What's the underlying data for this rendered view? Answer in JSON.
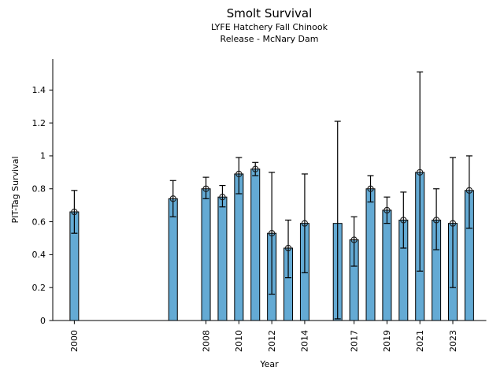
{
  "chart_data": {
    "type": "bar",
    "title": "Smolt Survival",
    "subtitle": [
      "LYFE Hatchery Fall Chinook",
      "Release - McNary Dam"
    ],
    "xlabel": "Year",
    "ylabel": "PIT-Tag Survival",
    "xlim": [
      1998.69,
      2025.01
    ],
    "ylim": [
      0,
      1.588
    ],
    "grid": false,
    "legend": "none",
    "yticks": [
      0,
      0.2,
      0.4,
      0.6,
      0.8,
      1,
      1.2,
      1.4
    ],
    "ytick_labels": [
      "0",
      "0.2",
      "0.4",
      "0.6",
      "0.8",
      "1",
      "1.2",
      "1.4"
    ],
    "xticks": [
      2000,
      2008,
      2010,
      2012,
      2014,
      2017,
      2019,
      2021,
      2023
    ],
    "xtick_labels": [
      "2000",
      "2008",
      "2010",
      "2012",
      "2014",
      "2017",
      "2019",
      "2021",
      "2023"
    ],
    "bar_color": "#64AAD4",
    "bar_edge_color": "#000000",
    "error_color": "#000000",
    "marker_style": "open-circle",
    "series": [
      {
        "name": "PIT-Tag Survival",
        "points": [
          {
            "year": 2000,
            "value": 0.66,
            "ci_low": 0.53,
            "ci_high": 0.79
          },
          {
            "year": 2006,
            "value": 0.74,
            "ci_low": 0.63,
            "ci_high": 0.85
          },
          {
            "year": 2008,
            "value": 0.8,
            "ci_low": 0.74,
            "ci_high": 0.87
          },
          {
            "year": 2009,
            "value": 0.75,
            "ci_low": 0.69,
            "ci_high": 0.82
          },
          {
            "year": 2010,
            "value": 0.89,
            "ci_low": 0.77,
            "ci_high": 0.99
          },
          {
            "year": 2011,
            "value": 0.92,
            "ci_low": 0.88,
            "ci_high": 0.96
          },
          {
            "year": 2012,
            "value": 0.53,
            "ci_low": 0.16,
            "ci_high": 0.9
          },
          {
            "year": 2013,
            "value": 0.44,
            "ci_low": 0.26,
            "ci_high": 0.61
          },
          {
            "year": 2014,
            "value": 0.59,
            "ci_low": 0.29,
            "ci_high": 0.89
          },
          {
            "year": 2016,
            "value": 0.59,
            "ci_low": 0.01,
            "ci_high": 1.21,
            "marker": false
          },
          {
            "year": 2017,
            "value": 0.49,
            "ci_low": 0.33,
            "ci_high": 0.63
          },
          {
            "year": 2018,
            "value": 0.8,
            "ci_low": 0.72,
            "ci_high": 0.88
          },
          {
            "year": 2019,
            "value": 0.67,
            "ci_low": 0.59,
            "ci_high": 0.75
          },
          {
            "year": 2020,
            "value": 0.61,
            "ci_low": 0.44,
            "ci_high": 0.78
          },
          {
            "year": 2021,
            "value": 0.9,
            "ci_low": 0.3,
            "ci_high": 1.51
          },
          {
            "year": 2022,
            "value": 0.61,
            "ci_low": 0.43,
            "ci_high": 0.8
          },
          {
            "year": 2023,
            "value": 0.59,
            "ci_low": 0.2,
            "ci_high": 0.99
          },
          {
            "year": 2024,
            "value": 0.79,
            "ci_low": 0.56,
            "ci_high": 1.0
          }
        ]
      }
    ]
  }
}
